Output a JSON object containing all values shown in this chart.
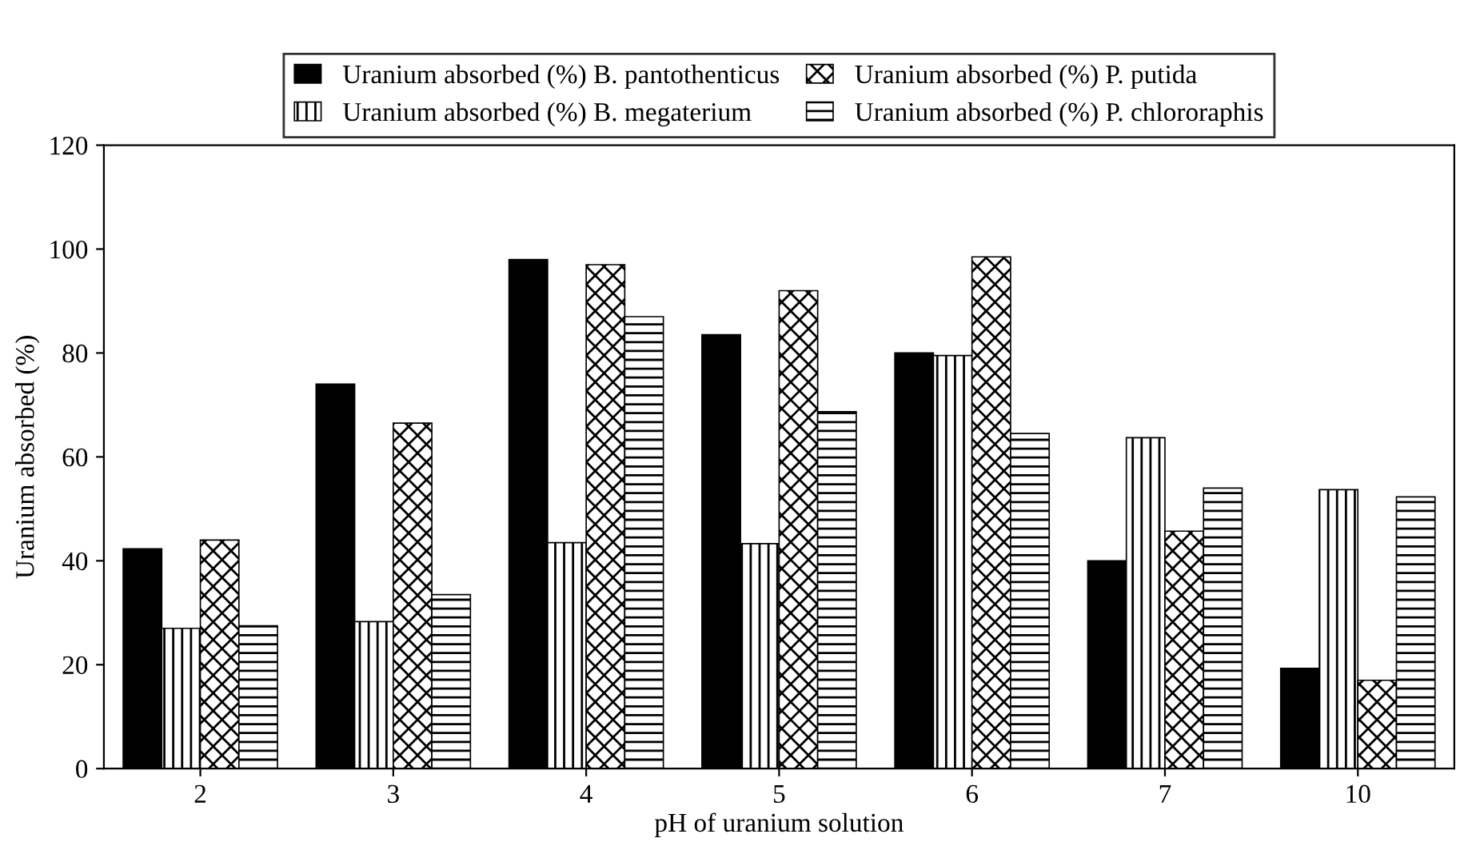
{
  "chart_data": {
    "type": "bar",
    "xlabel": "pH of uranium solution",
    "ylabel": "Uranium absorbed (%)",
    "categories": [
      "2",
      "3",
      "4",
      "5",
      "6",
      "7",
      "10"
    ],
    "series": [
      {
        "name": "Uranium absorbed (%) B. pantothenticus",
        "color": "#000000",
        "values": [
          42.3,
          74,
          98,
          83.5,
          80,
          40,
          19.3
        ]
      },
      {
        "name": "Uranium absorbed (%) B. megaterium",
        "color": "#000000",
        "values": [
          27,
          28.3,
          43.5,
          43.3,
          79.5,
          63.7,
          53.7
        ]
      },
      {
        "name": "Uranium absorbed (%) P. putida",
        "color": "#000000",
        "values": [
          44,
          66.5,
          97,
          92,
          98.5,
          45.7,
          17
        ]
      },
      {
        "name": "Uranium absorbed (%) P. chlororaphis",
        "color": "#000000",
        "values": [
          27.5,
          33.5,
          87,
          68.7,
          64.5,
          54,
          52.3
        ]
      }
    ],
    "ylim": [
      0,
      120
    ],
    "yticks": [
      0,
      20,
      40,
      60,
      80,
      100,
      120
    ],
    "grid": false,
    "legend": "top"
  }
}
